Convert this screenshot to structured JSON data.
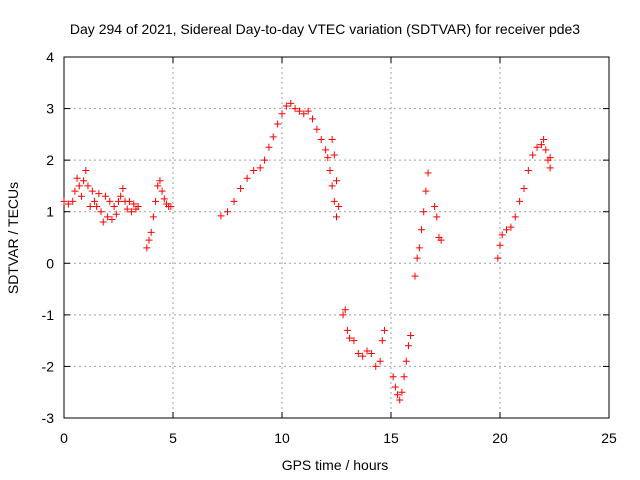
{
  "chart_data": {
    "type": "scatter",
    "title": "Day 294 of 2021, Sidereal Day-to-day VTEC variation (SDTVAR) for receiver pde3",
    "xlabel": "GPS time / hours",
    "ylabel": "SDTVAR / TECUs",
    "xlim": [
      0,
      25
    ],
    "ylim": [
      -3,
      4
    ],
    "xticks": [
      0,
      5,
      10,
      15,
      20,
      25
    ],
    "yticks": [
      -3,
      -2,
      -1,
      0,
      1,
      2,
      3,
      4
    ],
    "grid": true,
    "marker": "+",
    "color": "#ff0000",
    "segments": [
      {
        "name": "arc-1",
        "points": [
          [
            0,
            1.2
          ],
          [
            0.2,
            1.15
          ],
          [
            0.4,
            1.2
          ],
          [
            0.5,
            1.4
          ],
          [
            0.6,
            1.65
          ],
          [
            0.7,
            1.5
          ],
          [
            0.8,
            1.3
          ],
          [
            0.9,
            1.6
          ],
          [
            1.0,
            1.8
          ],
          [
            1.1,
            1.5
          ],
          [
            1.2,
            1.1
          ],
          [
            1.3,
            1.4
          ],
          [
            1.4,
            1.2
          ],
          [
            1.5,
            1.1
          ],
          [
            1.6,
            1.35
          ],
          [
            1.7,
            1.0
          ],
          [
            1.8,
            0.8
          ],
          [
            1.9,
            1.3
          ],
          [
            2.0,
            0.9
          ],
          [
            2.1,
            1.2
          ],
          [
            2.2,
            0.85
          ],
          [
            2.3,
            1.1
          ],
          [
            2.4,
            0.95
          ],
          [
            2.5,
            1.2
          ],
          [
            2.6,
            1.3
          ],
          [
            2.7,
            1.45
          ],
          [
            2.8,
            1.2
          ],
          [
            2.9,
            1.05
          ],
          [
            3.0,
            1.2
          ],
          [
            3.1,
            1.0
          ],
          [
            3.2,
            1.15
          ],
          [
            3.3,
            1.05
          ],
          [
            3.4,
            1.1
          ]
        ]
      },
      {
        "name": "arc-2",
        "points": [
          [
            3.8,
            0.3
          ],
          [
            3.9,
            0.45
          ],
          [
            4.0,
            0.6
          ],
          [
            4.1,
            0.9
          ],
          [
            4.2,
            1.2
          ],
          [
            4.3,
            1.5
          ],
          [
            4.4,
            1.6
          ],
          [
            4.5,
            1.4
          ],
          [
            4.6,
            1.25
          ],
          [
            4.7,
            1.15
          ],
          [
            4.8,
            1.1
          ],
          [
            4.9,
            1.1
          ]
        ]
      },
      {
        "name": "arc-3",
        "points": [
          [
            7.2,
            0.92
          ],
          [
            7.5,
            1.0
          ],
          [
            7.8,
            1.2
          ],
          [
            8.1,
            1.45
          ],
          [
            8.4,
            1.65
          ],
          [
            8.7,
            1.8
          ],
          [
            9.0,
            1.85
          ],
          [
            9.2,
            2.0
          ],
          [
            9.4,
            2.25
          ],
          [
            9.6,
            2.45
          ],
          [
            9.8,
            2.7
          ],
          [
            10.0,
            2.9
          ],
          [
            10.2,
            3.05
          ],
          [
            10.4,
            3.1
          ],
          [
            10.6,
            3.0
          ],
          [
            10.8,
            2.95
          ],
          [
            11.0,
            2.9
          ],
          [
            11.2,
            2.95
          ],
          [
            11.4,
            2.8
          ],
          [
            11.6,
            2.6
          ],
          [
            11.8,
            2.4
          ],
          [
            12.0,
            2.2
          ],
          [
            12.1,
            2.05
          ],
          [
            12.2,
            1.8
          ],
          [
            12.3,
            1.5
          ],
          [
            12.4,
            1.2
          ],
          [
            12.5,
            0.9
          ]
        ]
      },
      {
        "name": "arc-4",
        "points": [
          [
            12.3,
            2.4
          ],
          [
            12.4,
            2.1
          ],
          [
            12.5,
            1.6
          ],
          [
            12.6,
            1.1
          ]
        ]
      },
      {
        "name": "arc-5",
        "points": [
          [
            12.8,
            -1.0
          ],
          [
            12.9,
            -0.9
          ],
          [
            13.0,
            -1.3
          ],
          [
            13.1,
            -1.45
          ],
          [
            13.3,
            -1.5
          ],
          [
            13.5,
            -1.75
          ],
          [
            13.7,
            -1.8
          ],
          [
            13.9,
            -1.7
          ],
          [
            14.1,
            -1.75
          ],
          [
            14.3,
            -2.0
          ],
          [
            14.5,
            -1.9
          ],
          [
            14.6,
            -1.5
          ],
          [
            14.7,
            -1.3
          ]
        ]
      },
      {
        "name": "arc-6",
        "points": [
          [
            15.1,
            -2.2
          ],
          [
            15.2,
            -2.4
          ],
          [
            15.3,
            -2.55
          ],
          [
            15.4,
            -2.65
          ],
          [
            15.5,
            -2.5
          ],
          [
            15.6,
            -2.2
          ],
          [
            15.7,
            -1.9
          ],
          [
            15.8,
            -1.6
          ],
          [
            15.9,
            -1.4
          ]
        ]
      },
      {
        "name": "arc-7",
        "points": [
          [
            16.1,
            -0.25
          ],
          [
            16.2,
            0.1
          ],
          [
            16.3,
            0.3
          ],
          [
            16.4,
            0.65
          ],
          [
            16.5,
            1.0
          ],
          [
            16.6,
            1.4
          ],
          [
            16.7,
            1.75
          ]
        ]
      },
      {
        "name": "arc-8",
        "points": [
          [
            17.0,
            1.1
          ],
          [
            17.1,
            0.9
          ],
          [
            17.2,
            0.5
          ],
          [
            17.3,
            0.45
          ]
        ]
      },
      {
        "name": "arc-9",
        "points": [
          [
            19.9,
            0.1
          ],
          [
            20.0,
            0.35
          ],
          [
            20.1,
            0.55
          ],
          [
            20.3,
            0.65
          ],
          [
            20.5,
            0.7
          ],
          [
            20.7,
            0.9
          ],
          [
            20.9,
            1.2
          ],
          [
            21.1,
            1.45
          ],
          [
            21.3,
            1.8
          ],
          [
            21.5,
            2.1
          ],
          [
            21.7,
            2.25
          ],
          [
            21.9,
            2.3
          ],
          [
            22.0,
            2.4
          ],
          [
            22.1,
            2.2
          ],
          [
            22.2,
            2.0
          ],
          [
            22.3,
            1.85
          ],
          [
            22.3,
            2.05
          ]
        ]
      }
    ]
  }
}
